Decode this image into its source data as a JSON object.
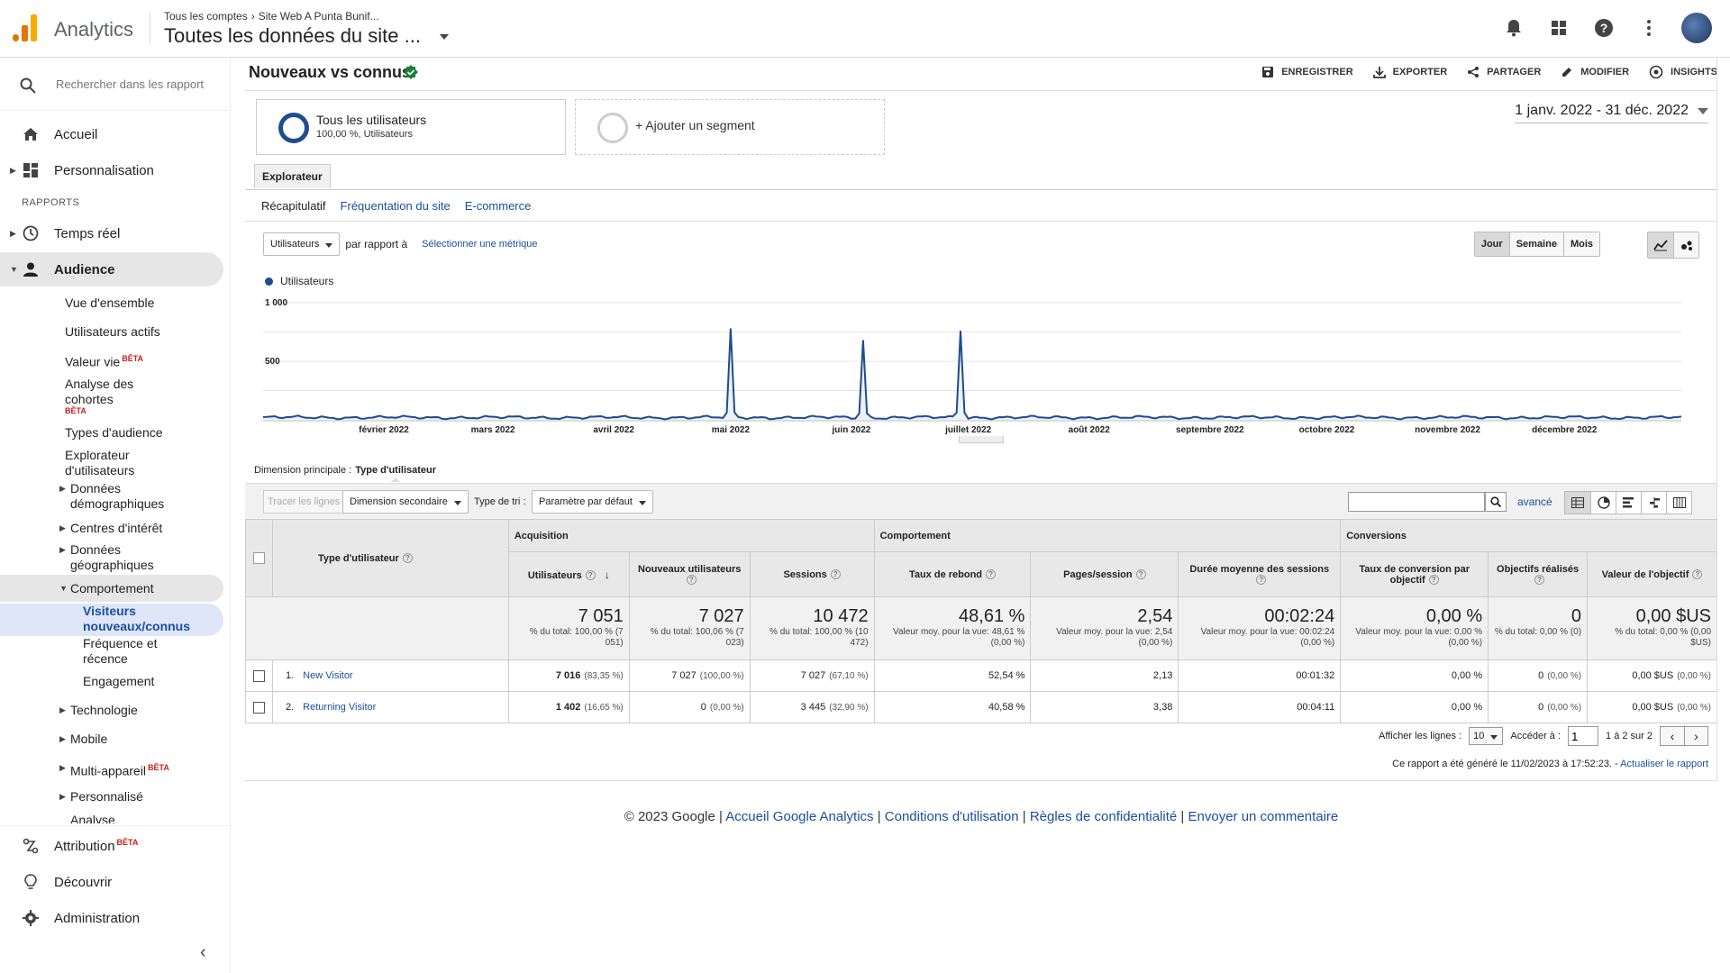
{
  "app": {
    "name": "Analytics"
  },
  "breadcrumb": {
    "account": "Tous les comptes",
    "property": "Site Web A Punta Bunif..."
  },
  "view": {
    "title": "Toutes les données du site ..."
  },
  "sidebar": {
    "search_placeholder": "Rechercher dans les rapport",
    "home": "Accueil",
    "custom": "Personnalisation",
    "reports_label": "RAPPORTS",
    "realtime": "Temps réel",
    "audience": "Audience",
    "audience_items": {
      "overview": "Vue d'ensemble",
      "active_users": "Utilisateurs actifs",
      "lifetime_value": "Valeur vie",
      "cohort": "Analyse des cohortes",
      "audience_types": "Types d'audience",
      "user_explorer": "Explorateur d'utilisateurs",
      "demographics": "Données démographiques",
      "interests": "Centres d'intérêt",
      "geo": "Données géographiques",
      "behavior": "Comportement",
      "new_vs_returning": "Visiteurs nouveaux/connus",
      "frequency": "Fréquence et récence",
      "engagement": "Engagement",
      "technology": "Technologie",
      "mobile": "Mobile",
      "multi_device": "Multi-appareil",
      "custom": "Personnalisé",
      "analysis": "Analyse"
    },
    "beta": "BÊTA",
    "attribution": "Attribution",
    "discover": "Découvrir",
    "admin": "Administration"
  },
  "report": {
    "title": "Nouveaux vs connus",
    "actions": {
      "save": "ENREGISTRER",
      "export": "EXPORTER",
      "share": "PARTAGER",
      "edit": "MODIFIER",
      "insights": "INSIGHTS"
    },
    "segment1": {
      "title": "Tous les utilisateurs",
      "sub": "100,00 %, Utilisateurs"
    },
    "segment2": {
      "title": "+ Ajouter un segment"
    },
    "date_range": "1 janv. 2022 - 31 déc. 2022",
    "tab": "Explorateur",
    "subtabs": {
      "summary": "Récapitulatif",
      "usage": "Fréquentation du site",
      "ecommerce": "E-commerce"
    },
    "metric_select": "Utilisateurs",
    "vs_label": "par rapport à",
    "select_metric": "Sélectionner une métrique",
    "periods": {
      "day": "Jour",
      "week": "Semaine",
      "month": "Mois"
    },
    "primary_dim_label": "Dimension principale :",
    "primary_dim_value": "Type d'utilisateur"
  },
  "chart_data": {
    "type": "line",
    "series": [
      {
        "name": "Utilisateurs",
        "color": "#1e4c8f",
        "spikes": [
          {
            "x": "2022-05-01",
            "y": 780
          },
          {
            "x": "2022-06-04",
            "y": 680
          },
          {
            "x": "2022-06-29",
            "y": 760
          }
        ],
        "baseline_approx": 20
      }
    ],
    "y_ticks": [
      "1 000",
      "500"
    ],
    "ylim": [
      0,
      1000
    ],
    "x_tick_labels": [
      "février 2022",
      "mars 2022",
      "avril 2022",
      "mai 2022",
      "juin 2022",
      "juillet 2022",
      "août 2022",
      "septembre 2022",
      "octobre 2022",
      "novembre 2022",
      "décembre 2022"
    ],
    "xlim": [
      "2022-01-01",
      "2022-12-31"
    ]
  },
  "toolbar": {
    "plot_rows": "Tracer les lignes",
    "secondary_dim": "Dimension secondaire",
    "sort_label": "Type de tri :",
    "sort_value": "Paramètre par défaut",
    "advanced": "avancé"
  },
  "table": {
    "groups": {
      "acq": "Acquisition",
      "beh": "Comportement",
      "conv": "Conversions"
    },
    "dim_header": "Type d'utilisateur",
    "cols": {
      "users": "Utilisateurs",
      "new_users": "Nouveaux utilisateurs",
      "sessions": "Sessions",
      "bounce": "Taux de rebond",
      "pages": "Pages/session",
      "duration": "Durée moyenne des sessions",
      "conv_rate": "Taux de conversion par objectif",
      "goals": "Objectifs réalisés",
      "goal_value": "Valeur de l'objectif"
    },
    "totals": {
      "users": "7 051",
      "users_sub": "% du total: 100,00 % (7 051)",
      "new_users": "7 027",
      "new_users_sub": "% du total: 100,06 % (7 023)",
      "sessions": "10 472",
      "sessions_sub": "% du total: 100,00 % (10 472)",
      "bounce": "48,61 %",
      "bounce_sub": "Valeur moy. pour la vue: 48,61 % (0,00 %)",
      "pages": "2,54",
      "pages_sub": "Valeur moy. pour la vue: 2,54 (0,00 %)",
      "duration": "00:02:24",
      "duration_sub": "Valeur moy. pour la vue: 00:02:24 (0,00 %)",
      "conv_rate": "0,00 %",
      "conv_rate_sub": "Valeur moy. pour la vue: 0,00 % (0,00 %)",
      "goals": "0",
      "goals_sub": "% du total: 0,00 % (0)",
      "goal_value": "0,00 $US",
      "goal_value_sub": "% du total: 0,00 % (0,00 $US)"
    },
    "rows": [
      {
        "idx": "1.",
        "name": "New Visitor",
        "users": "7 016",
        "users_pct": "(83,35 %)",
        "new_users": "7 027",
        "new_users_pct": "(100,00 %)",
        "sessions": "7 027",
        "sessions_pct": "(67,10 %)",
        "bounce": "52,54 %",
        "pages": "2,13",
        "duration": "00:01:32",
        "conv_rate": "0,00 %",
        "goals": "0",
        "goals_pct": "(0,00 %)",
        "goal_value": "0,00 $US",
        "goal_value_pct": "(0,00 %)"
      },
      {
        "idx": "2.",
        "name": "Returning Visitor",
        "users": "1 402",
        "users_pct": "(16,65 %)",
        "new_users": "0",
        "new_users_pct": "(0,00 %)",
        "sessions": "3 445",
        "sessions_pct": "(32,90 %)",
        "bounce": "40,58 %",
        "pages": "3,38",
        "duration": "00:04:11",
        "conv_rate": "0,00 %",
        "goals": "0",
        "goals_pct": "(0,00 %)",
        "goal_value": "0,00 $US",
        "goal_value_pct": "(0,00 %)"
      }
    ]
  },
  "pager": {
    "show_rows": "Afficher les lignes :",
    "rows_value": "10",
    "goto": "Accéder à :",
    "goto_value": "1",
    "range": "1 à 2 sur 2"
  },
  "generated": {
    "text": "Ce rapport a été généré le 11/02/2023 à 17:52:23. -",
    "refresh": "Actualiser le rapport"
  },
  "footer": {
    "copyright": "© 2023 Google",
    "home": "Accueil Google Analytics",
    "terms": "Conditions d'utilisation",
    "privacy": "Règles de confidentialité",
    "feedback": "Envoyer un commentaire"
  }
}
